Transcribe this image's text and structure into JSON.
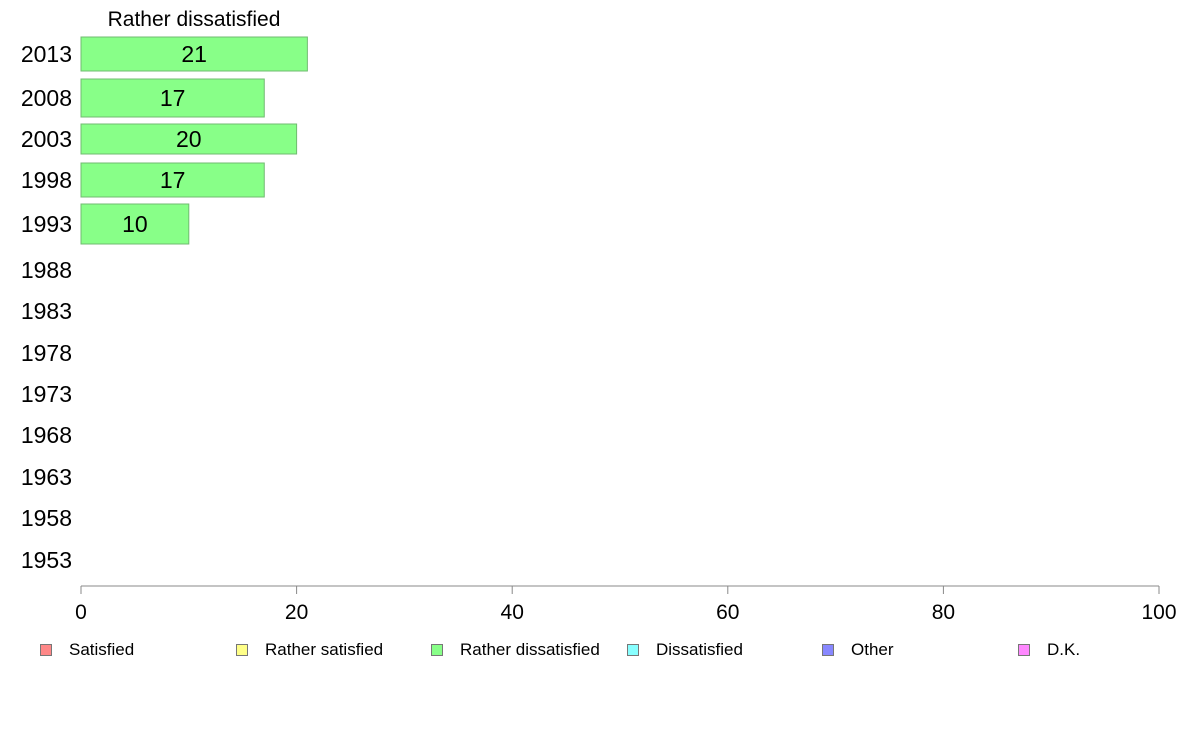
{
  "chart_data": {
    "type": "bar",
    "orientation": "horizontal",
    "title": "Rather dissatisfied",
    "categories": [
      "2013",
      "2008",
      "2003",
      "1998",
      "1993",
      "1988",
      "1983",
      "1978",
      "1973",
      "1968",
      "1963",
      "1958",
      "1953"
    ],
    "series": [
      {
        "name": "Rather dissatisfied",
        "color": "#88ff88",
        "values": [
          21,
          17,
          20,
          17,
          10,
          null,
          null,
          null,
          null,
          null,
          null,
          null,
          null
        ]
      }
    ],
    "xlim": [
      0,
      100
    ],
    "xticks": [
      "0",
      "20",
      "40",
      "60",
      "80",
      "100"
    ],
    "grid": false,
    "legend_position": "bottom",
    "legend": [
      {
        "label": "Satisfied",
        "color": "#ff8888"
      },
      {
        "label": "Rather satisfied",
        "color": "#ffff88"
      },
      {
        "label": "Rather dissatisfied",
        "color": "#88ff88"
      },
      {
        "label": "Dissatisfied",
        "color": "#88ffff"
      },
      {
        "label": "Other",
        "color": "#8888ff"
      },
      {
        "label": "D.K.",
        "color": "#ff88ff"
      }
    ]
  }
}
